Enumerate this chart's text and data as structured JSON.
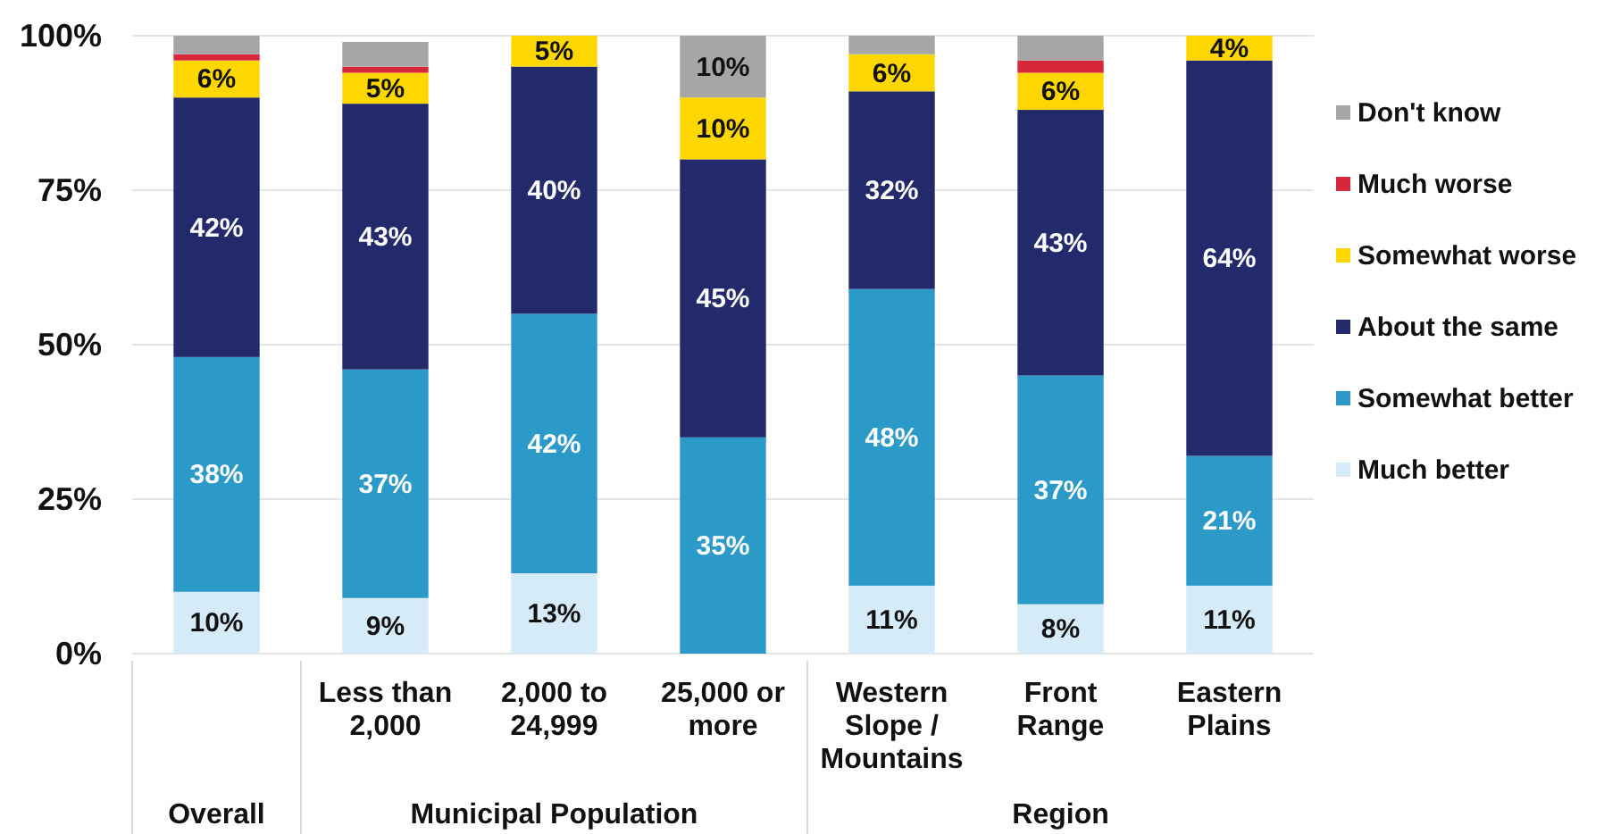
{
  "chart_data": {
    "type": "bar",
    "stacked": true,
    "categories": [
      null,
      "Less than 2,000",
      "2,000 to 24,999",
      "25,000 or more",
      "Western Slope / Mountains",
      "Front Range",
      "Eastern Plains"
    ],
    "series": [
      {
        "name": "Much better",
        "color": "#d5ebf7",
        "values": [
          10,
          9,
          13,
          0,
          11,
          8,
          11
        ],
        "value_labels": [
          "10%",
          "9%",
          "13%",
          null,
          "11%",
          "8%",
          "11%"
        ]
      },
      {
        "name": "Somewhat better",
        "color": "#2b9ac8",
        "values": [
          38,
          37,
          42,
          35,
          48,
          37,
          21
        ],
        "value_labels": [
          "38%",
          "37%",
          "42%",
          "35%",
          "48%",
          "37%",
          "21%"
        ]
      },
      {
        "name": "About the same",
        "color": "#232a6c",
        "values": [
          42,
          43,
          40,
          45,
          32,
          43,
          64
        ],
        "value_labels": [
          "42%",
          "43%",
          "40%",
          "45%",
          "32%",
          "43%",
          "64%"
        ]
      },
      {
        "name": "Somewhat worse",
        "color": "#ffd700",
        "values": [
          6,
          5,
          5,
          10,
          6,
          6,
          4
        ],
        "value_labels": [
          "6%",
          "5%",
          "5%",
          "10%",
          "6%",
          "6%",
          "4%"
        ]
      },
      {
        "name": "Much worse",
        "color": "#d7283b",
        "values": [
          1,
          1,
          0,
          0,
          0,
          2,
          0
        ]
      },
      {
        "name": "Don't know",
        "color": "#a6a6a6",
        "values": [
          3,
          4,
          0,
          10,
          3,
          4,
          0
        ],
        "value_labels": [
          null,
          null,
          null,
          "10%",
          null,
          null,
          null
        ]
      }
    ],
    "ylim": [
      0,
      100
    ],
    "yticks": [
      {
        "value": 0,
        "label": "0%"
      },
      {
        "value": 25,
        "label": "25%"
      },
      {
        "value": 50,
        "label": "50%"
      },
      {
        "value": 75,
        "label": "75%"
      },
      {
        "value": 100,
        "label": "100%"
      }
    ],
    "grid": "y",
    "legend": "right",
    "annotations": [
      "Overall",
      "Municipal Population",
      "Region"
    ]
  }
}
